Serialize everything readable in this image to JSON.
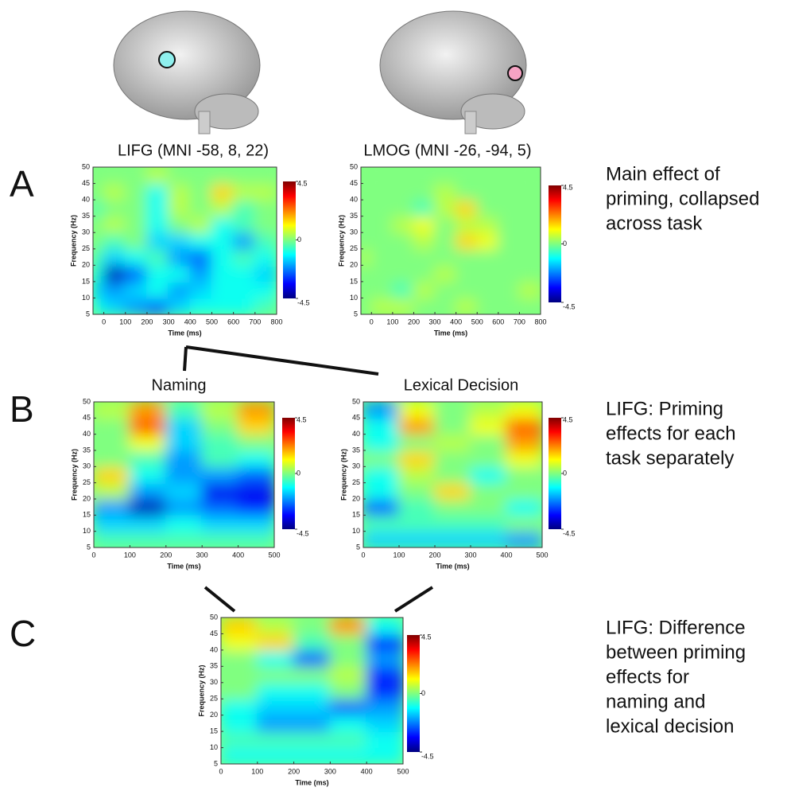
{
  "chart_data": [
    {
      "type": "heatmap",
      "title": "LIFG (MNI -58, 8, 22)",
      "xlabel": "Time (ms)",
      "ylabel": "Frequency (Hz)",
      "xlim": [
        -50,
        800
      ],
      "xticks": [
        0,
        100,
        200,
        300,
        400,
        500,
        600,
        700,
        800
      ],
      "ylim": [
        5,
        50
      ],
      "yticks": [
        5,
        10,
        15,
        20,
        25,
        30,
        35,
        40,
        45,
        50
      ],
      "xbins": [
        -50,
        0,
        100,
        200,
        300,
        400,
        500,
        600,
        700,
        800
      ],
      "ybins": [
        5,
        10,
        15,
        20,
        25,
        30,
        35,
        40,
        45,
        50
      ],
      "z": [
        [
          -1,
          -1.5,
          -2,
          -2.5,
          -1.5,
          -1,
          -1,
          -1,
          -0.5
        ],
        [
          -1.5,
          -2,
          -1.5,
          -1,
          -2,
          -1.5,
          -1,
          -1,
          -1
        ],
        [
          -1,
          -4,
          -2.5,
          -1,
          -1,
          -2,
          -1,
          -1,
          -1.5
        ],
        [
          -0.5,
          -1.5,
          -1,
          -0.5,
          -2,
          -2.5,
          -1,
          -0.5,
          -1
        ],
        [
          0,
          -0.5,
          0,
          -1.5,
          -1.5,
          -1,
          -1,
          -2,
          -0.5
        ],
        [
          0,
          0.5,
          0,
          -1,
          0,
          0.5,
          -1,
          -0.5,
          0
        ],
        [
          -0.5,
          0,
          0,
          -1,
          0.5,
          0,
          0.5,
          -0.5,
          0
        ],
        [
          0,
          0.5,
          0,
          -1,
          0.5,
          0,
          1.5,
          0.5,
          0.5
        ],
        [
          0,
          0,
          0,
          0.5,
          0,
          0,
          0,
          0,
          0
        ]
      ],
      "clim": [
        -4.5,
        4.5
      ],
      "cticks": [
        -4.5,
        0,
        4.5
      ]
    },
    {
      "type": "heatmap",
      "title": "LMOG (MNI -26, -94, 5)",
      "xlabel": "Time (ms)",
      "ylabel": "Frequency (Hz)",
      "xlim": [
        -50,
        800
      ],
      "xticks": [
        0,
        100,
        200,
        300,
        400,
        500,
        600,
        700,
        800
      ],
      "ylim": [
        5,
        50
      ],
      "yticks": [
        5,
        10,
        15,
        20,
        25,
        30,
        35,
        40,
        45,
        50
      ],
      "xbins": [
        -50,
        0,
        100,
        200,
        300,
        400,
        500,
        600,
        700,
        800
      ],
      "ybins": [
        5,
        10,
        15,
        20,
        25,
        30,
        35,
        40,
        45,
        50
      ],
      "z": [
        [
          0,
          0.5,
          0.5,
          0,
          0,
          0.5,
          0,
          0,
          0
        ],
        [
          0,
          0,
          -0.5,
          0.5,
          0,
          0,
          0,
          0,
          0.5
        ],
        [
          0,
          0,
          0,
          0,
          0.5,
          0,
          0,
          0,
          0
        ],
        [
          0.5,
          0,
          0,
          0,
          0,
          0,
          0,
          0,
          0
        ],
        [
          0,
          0,
          0,
          0.5,
          0,
          1.5,
          1,
          0,
          0
        ],
        [
          0,
          0,
          0.5,
          1,
          0,
          0.5,
          0.5,
          0,
          0
        ],
        [
          0,
          0,
          0,
          -0.5,
          0.5,
          1.5,
          0,
          0,
          0
        ],
        [
          0,
          0,
          0,
          0,
          0.5,
          0,
          0,
          0,
          0
        ],
        [
          0,
          0,
          0,
          0,
          0,
          0,
          0,
          0,
          0
        ]
      ],
      "clim": [
        -4.5,
        4.5
      ],
      "cticks": [
        -4.5,
        0,
        4.5
      ]
    },
    {
      "type": "heatmap",
      "title": "Naming",
      "xlabel": "Time (ms)",
      "ylabel": "Frequency (Hz)",
      "xlim": [
        0,
        500
      ],
      "xticks": [
        0,
        100,
        200,
        300,
        400,
        500
      ],
      "ylim": [
        5,
        50
      ],
      "yticks": [
        5,
        10,
        15,
        20,
        25,
        30,
        35,
        40,
        45,
        50
      ],
      "xbins": [
        0,
        100,
        200,
        300,
        400,
        500
      ],
      "ybins": [
        5,
        10,
        15,
        20,
        25,
        30,
        35,
        40,
        45,
        50
      ],
      "z": [
        [
          -0.5,
          -0.5,
          -0.5,
          -0.5,
          -0.5
        ],
        [
          -1.5,
          -1.5,
          -1,
          -1.5,
          -1.5
        ],
        [
          -2,
          -4,
          -2,
          -2.5,
          -3
        ],
        [
          0.5,
          -2,
          -1.5,
          -3.5,
          -3.5
        ],
        [
          1.5,
          -1,
          -2,
          -2,
          -2.5
        ],
        [
          0,
          -0.5,
          -2,
          -0.5,
          -1
        ],
        [
          0,
          1,
          -1.5,
          -0.5,
          0
        ],
        [
          0,
          2.5,
          -1.5,
          0,
          1.5
        ],
        [
          0.5,
          2,
          -0.5,
          0.5,
          2
        ]
      ],
      "clim": [
        -4.5,
        4.5
      ],
      "cticks": [
        -4.5,
        0,
        4.5
      ]
    },
    {
      "type": "heatmap",
      "title": "Lexical Decision",
      "xlabel": "Time (ms)",
      "ylabel": "Frequency (Hz)",
      "xlim": [
        0,
        500
      ],
      "xticks": [
        0,
        100,
        200,
        300,
        400,
        500
      ],
      "ylim": [
        5,
        50
      ],
      "yticks": [
        5,
        10,
        15,
        20,
        25,
        30,
        35,
        40,
        45,
        50
      ],
      "xbins": [
        0,
        100,
        200,
        300,
        400,
        500
      ],
      "ybins": [
        5,
        10,
        15,
        20,
        25,
        30,
        35,
        40,
        45,
        50
      ],
      "z": [
        [
          -1.5,
          -1.5,
          -1.5,
          -1.5,
          -2
        ],
        [
          -0.5,
          -0.5,
          -0.5,
          -0.5,
          0
        ],
        [
          -2.5,
          -0.5,
          0,
          0,
          -1
        ],
        [
          -1,
          0,
          1.5,
          0,
          0
        ],
        [
          -1,
          0.5,
          0,
          -1,
          0
        ],
        [
          0,
          1.5,
          0,
          0,
          1
        ],
        [
          -1,
          0,
          0.5,
          0,
          2
        ],
        [
          -1,
          2,
          0,
          1,
          2.5
        ],
        [
          -2,
          1,
          0,
          0.5,
          1
        ]
      ],
      "clim": [
        -4.5,
        4.5
      ],
      "cticks": [
        -4.5,
        0,
        4.5
      ]
    },
    {
      "type": "heatmap",
      "xlabel": "Time (ms)",
      "ylabel": "Frequency (Hz)",
      "xlim": [
        0,
        500
      ],
      "xticks": [
        0,
        100,
        200,
        300,
        400,
        500
      ],
      "ylim": [
        5,
        50
      ],
      "yticks": [
        5,
        10,
        15,
        20,
        25,
        30,
        35,
        40,
        45,
        50
      ],
      "xbins": [
        0,
        100,
        200,
        300,
        400,
        500
      ],
      "ybins": [
        5,
        10,
        15,
        20,
        25,
        30,
        35,
        40,
        45,
        50
      ],
      "z": [
        [
          -1,
          -1,
          -1,
          -1,
          -1
        ],
        [
          -0.5,
          -0.5,
          -0.5,
          -0.5,
          -1
        ],
        [
          -1,
          -2,
          -2,
          -1,
          -1.5
        ],
        [
          -1,
          -1.5,
          -1.5,
          -2.5,
          -2
        ],
        [
          0,
          -1,
          -1,
          0,
          -3
        ],
        [
          0,
          0,
          0,
          0.5,
          -3
        ],
        [
          0,
          -1,
          -2.5,
          0,
          -2
        ],
        [
          1,
          1.5,
          -0.5,
          0,
          -3
        ],
        [
          1.5,
          0.5,
          0,
          2,
          -1
        ]
      ],
      "clim": [
        -4.5,
        4.5
      ],
      "cticks": [
        -4.5,
        0,
        4.5
      ]
    }
  ],
  "panels": [
    {
      "letter": "A",
      "caption": [
        "Main effect of",
        "priming, collapsed",
        "across task"
      ]
    },
    {
      "letter": "B",
      "caption": [
        "LIFG: Priming",
        "effects for each",
        "task separately"
      ]
    },
    {
      "letter": "C",
      "caption": [
        "LIFG: Difference",
        "between priming",
        "effects for",
        "naming and",
        "lexical decision"
      ]
    }
  ]
}
